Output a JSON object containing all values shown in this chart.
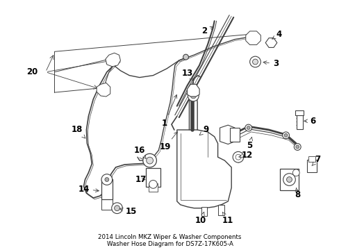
{
  "title": "2014 Lincoln MKZ Wiper & Washer Components\nWasher Hose Diagram for DS7Z-17K605-A",
  "bg_color": "#ffffff",
  "line_color": "#404040",
  "label_color": "#000000",
  "font_size_label": 8.5,
  "font_size_title": 6.2,
  "figsize": [
    4.89,
    3.6
  ],
  "dpi": 100
}
